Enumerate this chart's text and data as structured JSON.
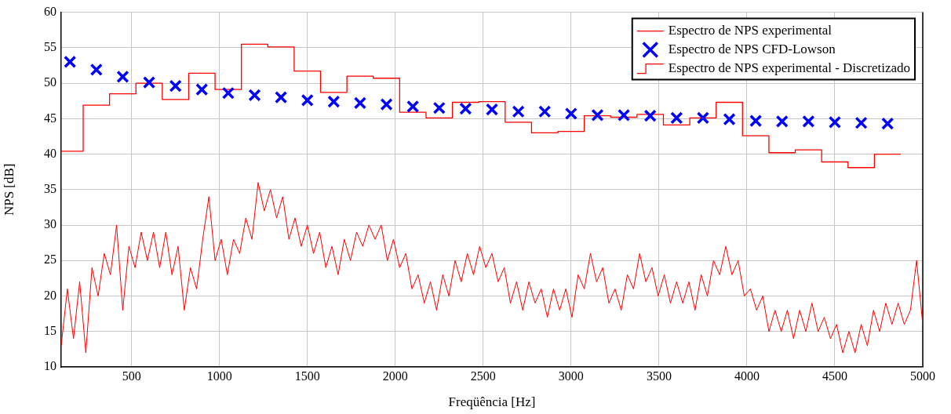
{
  "chart_data": {
    "type": "line",
    "xlabel": "Freqüência [Hz]",
    "ylabel": "NPS [dB]",
    "xlim": [
      100,
      5000
    ],
    "xticks": [
      500,
      1000,
      1500,
      2000,
      2500,
      3000,
      3500,
      4000,
      4500,
      5000
    ],
    "ylim": [
      10,
      60
    ],
    "yticks": [
      10,
      15,
      20,
      25,
      30,
      35,
      40,
      45,
      50,
      55,
      60
    ],
    "grid": true,
    "legend": "top right",
    "series": [
      {
        "name": "Espectro de NPS experimental",
        "type": "line",
        "color": "#ff0000",
        "marker": "none",
        "x": [
          100,
          135,
          170,
          205,
          240,
          275,
          310,
          345,
          380,
          415,
          450,
          485,
          520,
          555,
          590,
          625,
          660,
          695,
          730,
          765,
          800,
          835,
          870,
          905,
          940,
          975,
          1010,
          1045,
          1080,
          1115,
          1150,
          1185,
          1220,
          1255,
          1290,
          1325,
          1360,
          1395,
          1430,
          1465,
          1500,
          1535,
          1570,
          1605,
          1640,
          1675,
          1710,
          1745,
          1780,
          1815,
          1850,
          1885,
          1920,
          1955,
          1990,
          2025,
          2060,
          2095,
          2130,
          2165,
          2200,
          2235,
          2270,
          2305,
          2340,
          2375,
          2410,
          2445,
          2480,
          2515,
          2550,
          2585,
          2620,
          2655,
          2690,
          2725,
          2760,
          2795,
          2830,
          2865,
          2900,
          2935,
          2970,
          3005,
          3040,
          3075,
          3110,
          3145,
          3180,
          3215,
          3250,
          3285,
          3320,
          3355,
          3390,
          3425,
          3460,
          3495,
          3530,
          3565,
          3600,
          3635,
          3670,
          3705,
          3740,
          3775,
          3810,
          3845,
          3880,
          3915,
          3950,
          3985,
          4020,
          4055,
          4090,
          4125,
          4160,
          4195,
          4230,
          4265,
          4300,
          4335,
          4370,
          4405,
          4440,
          4475,
          4510,
          4545,
          4580,
          4615,
          4650,
          4685,
          4720,
          4755,
          4790,
          4825,
          4860,
          4895,
          4930,
          4965,
          5000
        ],
        "values": [
          13,
          21,
          14,
          22,
          12,
          24,
          20,
          26,
          23,
          30,
          18,
          27,
          24,
          29,
          25,
          29,
          24,
          29,
          23,
          27,
          18,
          24,
          21,
          28,
          34,
          25,
          28,
          23,
          28,
          26,
          31,
          28,
          36,
          32,
          35,
          31,
          34,
          28,
          31,
          27,
          30,
          26,
          29,
          24,
          27,
          23,
          28,
          25,
          29,
          27,
          30,
          28,
          30,
          25,
          28,
          24,
          26,
          21,
          23,
          19,
          22,
          18,
          23,
          20,
          25,
          22,
          26,
          23,
          27,
          24,
          26,
          22,
          24,
          19,
          22,
          18,
          22,
          19,
          21,
          17,
          21,
          18,
          21,
          17,
          23,
          21,
          26,
          22,
          24,
          19,
          21,
          18,
          23,
          21,
          26,
          22,
          24,
          20,
          23,
          19,
          22,
          19,
          22,
          18,
          23,
          20,
          25,
          23,
          27,
          23,
          25,
          20,
          21,
          18,
          20,
          15,
          18,
          15,
          18,
          14,
          18,
          15,
          19,
          15,
          17,
          14,
          16,
          12,
          15,
          12,
          16,
          13,
          18,
          15,
          19,
          16,
          19,
          16,
          18,
          25,
          16
        ]
      },
      {
        "name": "Espectro de NPS CFD-Lowson",
        "type": "scatter",
        "color": "#0000ff",
        "marker": "cross",
        "x": [
          150,
          300,
          450,
          600,
          750,
          900,
          1050,
          1200,
          1350,
          1500,
          1650,
          1800,
          1950,
          2100,
          2250,
          2400,
          2550,
          2700,
          2850,
          3000,
          3150,
          3300,
          3450,
          3600,
          3750,
          3900,
          4050,
          4200,
          4350,
          4500,
          4650,
          4800
        ],
        "values": [
          53.0,
          51.9,
          50.9,
          50.1,
          49.6,
          49.1,
          48.6,
          48.3,
          48.0,
          47.6,
          47.4,
          47.2,
          47.0,
          46.7,
          46.5,
          46.4,
          46.3,
          46.0,
          46.0,
          45.7,
          45.5,
          45.5,
          45.4,
          45.1,
          45.1,
          44.9,
          44.7,
          44.6,
          44.6,
          44.5,
          44.4,
          44.3
        ]
      },
      {
        "name": "Espectro de NPS experimental - Discretizado",
        "type": "step",
        "color": "#ff0000",
        "marker": "none",
        "x": [
          100,
          225,
          375,
          525,
          675,
          825,
          975,
          1125,
          1275,
          1425,
          1575,
          1725,
          1875,
          2025,
          2175,
          2325,
          2475,
          2625,
          2775,
          2925,
          3075,
          3225,
          3375,
          3525,
          3675,
          3825,
          3975,
          4125,
          4275,
          4425,
          4575,
          4725,
          4875
        ],
        "values": [
          40.4,
          46.9,
          48.5,
          50.0,
          47.7,
          51.4,
          49.1,
          55.5,
          55.1,
          51.7,
          48.7,
          51.0,
          50.7,
          45.9,
          45.1,
          47.3,
          47.4,
          44.5,
          43.0,
          43.2,
          45.4,
          45.2,
          45.6,
          44.1,
          45.1,
          47.3,
          42.6,
          40.2,
          40.6,
          38.9,
          38.1,
          40.0,
          40.0
        ]
      }
    ]
  }
}
